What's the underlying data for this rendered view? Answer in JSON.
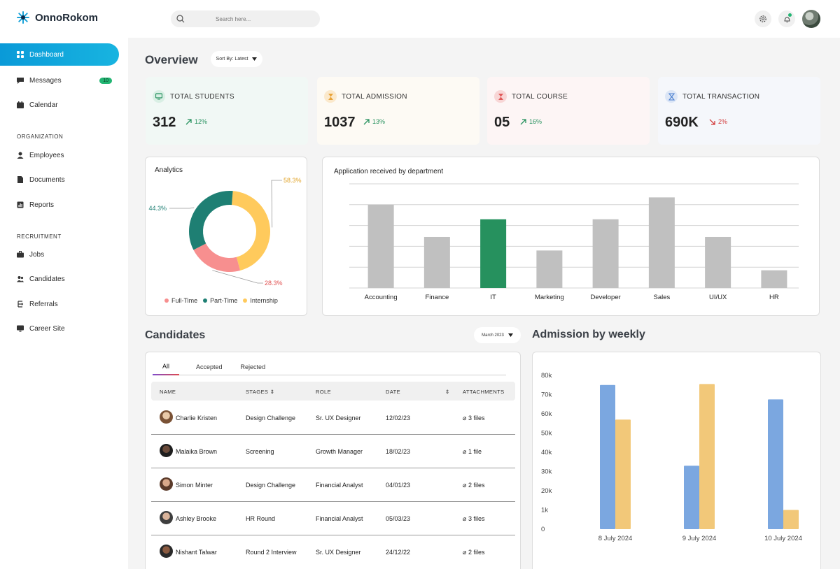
{
  "app": {
    "name": "OnnoRokom"
  },
  "search": {
    "placeholder": "Search here..."
  },
  "sidebar": {
    "items": [
      {
        "label": "Dashboard",
        "icon": "grid-icon"
      },
      {
        "label": "Messages",
        "icon": "message-icon",
        "badge": "10"
      },
      {
        "label": "Calendar",
        "icon": "calendar-icon"
      }
    ],
    "sections": [
      {
        "title": "ORGANIZATION",
        "items": [
          {
            "label": "Employees",
            "icon": "user-icon"
          },
          {
            "label": "Documents",
            "icon": "document-icon"
          },
          {
            "label": "Reports",
            "icon": "report-icon"
          }
        ]
      },
      {
        "title": "RECRUITMENT",
        "items": [
          {
            "label": "Jobs",
            "icon": "briefcase-icon"
          },
          {
            "label": "Candidates",
            "icon": "users-icon"
          },
          {
            "label": "Referrals",
            "icon": "referral-icon"
          },
          {
            "label": "Career Site",
            "icon": "monitor-icon"
          }
        ]
      }
    ]
  },
  "overview": {
    "title": "Overview",
    "sort_label": "Sort By: Latest",
    "stats": [
      {
        "label": "TOTAL STUDENTS",
        "value": "312",
        "delta": "12%",
        "trend": "up",
        "icon": "monitor-icon"
      },
      {
        "label": "TOTAL ADMISSION",
        "value": "1037",
        "delta": "13%",
        "trend": "up",
        "icon": "hourglass-icon"
      },
      {
        "label": "TOTAL COURSE",
        "value": "05",
        "delta": "16%",
        "trend": "up",
        "icon": "hourglass-icon"
      },
      {
        "label": "TOTAL TRANSACTION",
        "value": "690K",
        "delta": "2%",
        "trend": "down",
        "icon": "hourglass-icon"
      }
    ]
  },
  "analytics": {
    "title": "Analytics",
    "legend": [
      "Full-Time",
      "Part-Time",
      "Internship"
    ],
    "colors": {
      "full_time": "#f78f8f",
      "part_time": "#1e7f73",
      "internship": "#ffca5c"
    }
  },
  "chart_data": [
    {
      "type": "pie",
      "title": "Analytics",
      "categories": [
        "Internship",
        "Full-Time",
        "Part-Time"
      ],
      "values": [
        58.3,
        28.3,
        44.3
      ],
      "labels": [
        "58.3%",
        "28.3%",
        "44.3%"
      ],
      "legend": "bottom"
    },
    {
      "type": "bar",
      "title": "Application received by department",
      "categories": [
        "Accounting",
        "Finance",
        "IT",
        "Marketing",
        "Developer",
        "Sales",
        "UI/UX",
        "HR"
      ],
      "values": [
        80,
        49,
        66,
        36,
        66,
        87,
        49,
        17
      ],
      "highlight": "IT",
      "colors": {
        "default": "#c0c0c0",
        "highlight": "#26915e"
      },
      "ylim": [
        0,
        100
      ],
      "grid": true
    },
    {
      "type": "bar",
      "title": "Admission by weekly",
      "categories": [
        "8 July 2024",
        "9 July 2024",
        "10 July 2024"
      ],
      "series": [
        {
          "values": [
            75000,
            33000,
            67500
          ],
          "color": "#7ba7e0"
        },
        {
          "values": [
            57000,
            75500,
            10000
          ],
          "color": "#f2c879"
        }
      ],
      "y_ticks": [
        "80k",
        "70k",
        "60k",
        "50k",
        "40k",
        "30k",
        "20k",
        "1k",
        "0"
      ],
      "ylim": [
        0,
        80000
      ]
    }
  ],
  "department_chart": {
    "title": "Application received by department"
  },
  "candidates": {
    "title": "Candidates",
    "month_label": "March 2023",
    "tabs": [
      "All",
      "Accepted",
      "Rejected"
    ],
    "columns": [
      "NAME",
      "STAGES",
      "ROLE",
      "DATE",
      "ATTACHMENTS"
    ],
    "rows": [
      {
        "name": "Charlie Kristen",
        "stage": "Design Challenge",
        "role": "Sr. UX Designer",
        "date": "12/02/23",
        "attachments": "3 files"
      },
      {
        "name": "Malaika Brown",
        "stage": "Screening",
        "role": "Growth Manager",
        "date": "18/02/23",
        "attachments": "1 file"
      },
      {
        "name": "Simon Minter",
        "stage": "Design Challenge",
        "role": "Financial Analyst",
        "date": "04/01/23",
        "attachments": "2 files"
      },
      {
        "name": "Ashley Brooke",
        "stage": "HR Round",
        "role": "Financial Analyst",
        "date": "05/03/23",
        "attachments": "3 files"
      },
      {
        "name": "Nishant Talwar",
        "stage": "Round 2 Interview",
        "role": "Sr. UX Designer",
        "date": "24/12/22",
        "attachments": "2 files"
      }
    ]
  },
  "weekly": {
    "title": "Admission by weekly"
  }
}
